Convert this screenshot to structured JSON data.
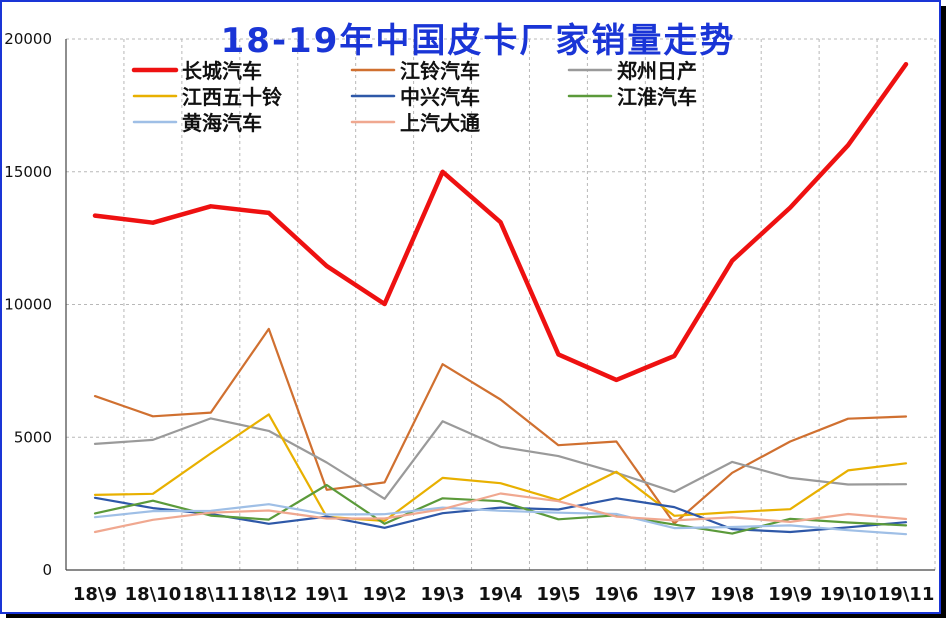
{
  "chart_data": {
    "type": "line",
    "title": "18-19年中国皮卡厂家销量走势",
    "xlabel": "",
    "ylabel": "",
    "categories": [
      "18\\9",
      "18\\10",
      "18\\11",
      "18\\12",
      "19\\1",
      "19\\2",
      "19\\3",
      "19\\4",
      "19\\5",
      "19\\6",
      "19\\7",
      "19\\8",
      "19\\9",
      "19\\10",
      "19\\11"
    ],
    "ylim": [
      0,
      20000
    ],
    "yticks": [
      0,
      5000,
      10000,
      15000,
      20000
    ],
    "grid": "dashed vertical and horizontal",
    "legend_position": "top",
    "colors": {
      "title": "#1a35d6",
      "border": "#1a35d6",
      "frame_shadow": "#000000"
    },
    "series": [
      {
        "name": "长城汽车",
        "color": "#ee1111",
        "width": 4.5,
        "values": [
          13350,
          13080,
          13700,
          13450,
          11450,
          10020,
          15000,
          13100,
          8120,
          7160,
          8060,
          11650,
          13650,
          16000,
          19050
        ]
      },
      {
        "name": "江铃汽车",
        "color": "#d07030",
        "width": 2.2,
        "values": [
          6550,
          5790,
          5930,
          9080,
          3020,
          3300,
          7750,
          6420,
          4700,
          4840,
          1750,
          3660,
          4840,
          5700,
          5780
        ]
      },
      {
        "name": "郑州日产",
        "color": "#9a9a9a",
        "width": 2.2,
        "values": [
          4750,
          4900,
          5710,
          5240,
          4050,
          2680,
          5600,
          4640,
          4290,
          3660,
          2940,
          4070,
          3470,
          3220,
          3230
        ]
      },
      {
        "name": "江西五十铃",
        "color": "#e8b000",
        "width": 2.2,
        "values": [
          2830,
          2870,
          4390,
          5860,
          2000,
          1850,
          3470,
          3270,
          2630,
          3700,
          2040,
          2180,
          2290,
          3750,
          4020
        ]
      },
      {
        "name": "中兴汽车",
        "color": "#2e58a8",
        "width": 2.2,
        "values": [
          2720,
          2330,
          2110,
          1740,
          2010,
          1590,
          2140,
          2350,
          2280,
          2700,
          2370,
          1540,
          1430,
          1610,
          1800
        ]
      },
      {
        "name": "江淮汽车",
        "color": "#5b9a3a",
        "width": 2.2,
        "values": [
          2130,
          2610,
          2050,
          1900,
          3200,
          1740,
          2700,
          2590,
          1910,
          2060,
          1710,
          1370,
          1930,
          1790,
          1680
        ]
      },
      {
        "name": "黄海汽车",
        "color": "#9fbfe6",
        "width": 2.2,
        "values": [
          1990,
          2220,
          2230,
          2480,
          2090,
          2100,
          2350,
          2230,
          2160,
          2110,
          1580,
          1620,
          1680,
          1500,
          1350
        ]
      },
      {
        "name": "上汽大通",
        "color": "#f0a890",
        "width": 2.2,
        "values": [
          1430,
          1890,
          2160,
          2240,
          1940,
          1940,
          2290,
          2880,
          2590,
          2010,
          1870,
          1980,
          1810,
          2110,
          1920
        ]
      }
    ]
  }
}
